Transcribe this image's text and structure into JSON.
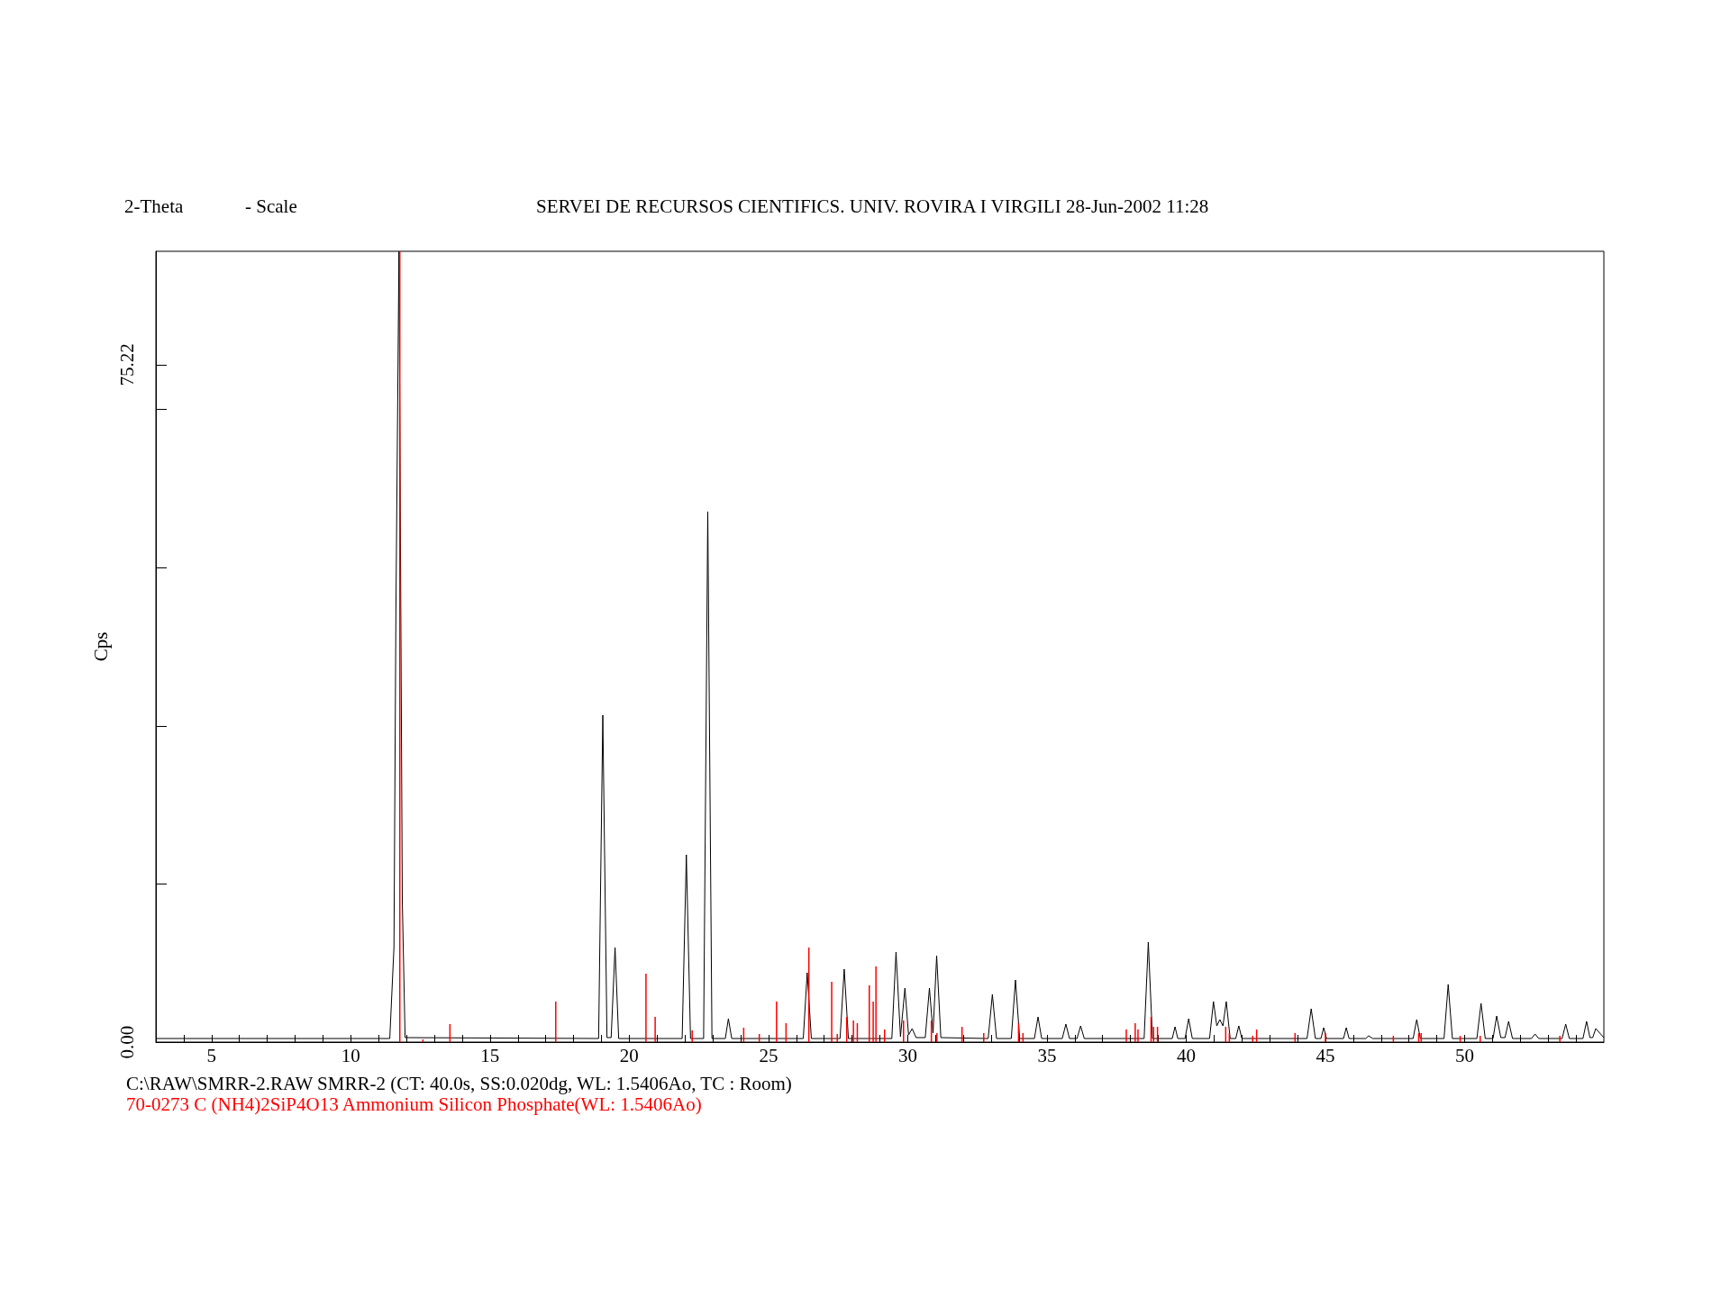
{
  "chart_data": {
    "type": "line",
    "title": "SERVEI DE RECURSOS CIENTIFICS. UNIV. ROVIRA I VIRGILI 28-Jun-2002 11:28",
    "xlabel": "2-Theta",
    "ylabel": "Cps",
    "annotations": [
      "- Scale"
    ],
    "xlim": [
      3,
      55
    ],
    "ylim": [
      0,
      87.8
    ],
    "xticks": [
      {
        "value": 4,
        "label": null
      },
      5,
      {
        "value": 6,
        "label": null
      },
      {
        "value": 7,
        "label": null
      },
      {
        "value": 8,
        "label": null
      },
      {
        "value": 9,
        "label": null
      },
      10,
      {
        "value": 11,
        "label": null
      },
      {
        "value": 12,
        "label": null
      },
      {
        "value": 13,
        "label": null
      },
      {
        "value": 14,
        "label": null
      },
      15,
      {
        "value": 16,
        "label": null
      },
      {
        "value": 17,
        "label": null
      },
      {
        "value": 18,
        "label": null
      },
      {
        "value": 19,
        "label": null
      },
      20,
      {
        "value": 21,
        "label": null
      },
      {
        "value": 22,
        "label": null
      },
      {
        "value": 23,
        "label": null
      },
      {
        "value": 24,
        "label": null
      },
      25,
      {
        "value": 26,
        "label": null
      },
      {
        "value": 27,
        "label": null
      },
      {
        "value": 28,
        "label": null
      },
      {
        "value": 29,
        "label": null
      },
      30,
      {
        "value": 31,
        "label": null
      },
      {
        "value": 32,
        "label": null
      },
      {
        "value": 33,
        "label": null
      },
      {
        "value": 34,
        "label": null
      },
      35,
      {
        "value": 36,
        "label": null
      },
      {
        "value": 37,
        "label": null
      },
      {
        "value": 38,
        "label": null
      },
      {
        "value": 39,
        "label": null
      },
      40,
      {
        "value": 41,
        "label": null
      },
      {
        "value": 42,
        "label": null
      },
      {
        "value": 43,
        "label": null
      },
      {
        "value": 44,
        "label": null
      },
      45,
      {
        "value": 46,
        "label": null
      },
      {
        "value": 47,
        "label": null
      },
      {
        "value": 48,
        "label": null
      },
      {
        "value": 49,
        "label": null
      },
      50,
      {
        "value": 51,
        "label": null
      },
      {
        "value": 52,
        "label": null
      },
      {
        "value": 53,
        "label": null
      },
      {
        "value": 54,
        "label": null
      }
    ],
    "yticks": [
      {
        "value": 0,
        "label": "0.00"
      },
      {
        "value": 17.56,
        "label": null
      },
      {
        "value": 35.12,
        "label": null
      },
      {
        "value": 52.68,
        "label": null
      },
      {
        "value": 70.24,
        "label": null
      },
      {
        "value": 75.22,
        "label": "75.22"
      }
    ],
    "grid": false,
    "marker": "none",
    "legend": "bottom left",
    "series": [
      {
        "name": "C:\\RAW\\SMRR-2.RAW SMRR-2 (CT: 40.0s, SS:0.020dg, WL: 1.5406Ao, TC : Room)",
        "color": "#000000",
        "x": [
          3.0,
          11.4,
          11.55,
          11.62,
          11.73,
          11.85,
          11.95,
          18.9,
          19.05,
          19.2,
          19.35,
          19.49,
          19.62,
          21.9,
          22.05,
          22.2,
          22.67,
          22.82,
          22.97,
          23.45,
          23.56,
          23.68,
          26.25,
          26.39,
          26.54,
          27.57,
          27.72,
          27.87,
          29.43,
          29.58,
          29.74,
          29.9,
          30.03,
          30.16,
          30.3,
          30.63,
          30.78,
          30.91,
          31.04,
          31.19,
          32.89,
          33.04,
          33.19,
          33.72,
          33.87,
          34.02,
          34.55,
          34.68,
          34.81,
          35.55,
          35.68,
          35.81,
          36.08,
          36.21,
          36.34,
          38.49,
          38.64,
          38.79,
          39.5,
          39.6,
          39.7,
          39.96,
          40.09,
          40.22,
          40.84,
          40.98,
          41.1,
          41.21,
          41.32,
          41.44,
          41.58,
          41.78,
          41.89,
          42.0,
          44.34,
          44.49,
          44.64,
          44.84,
          44.94,
          45.04,
          45.65,
          45.75,
          45.85,
          46.45,
          46.55,
          46.7,
          48.15,
          48.28,
          48.41,
          49.26,
          49.41,
          49.56,
          50.44,
          50.59,
          50.74,
          51.02,
          51.15,
          51.3,
          51.45,
          51.58,
          51.72,
          52.4,
          52.53,
          52.66,
          53.5,
          53.63,
          53.76,
          54.25,
          54.38,
          54.5,
          54.6,
          54.71,
          55.0
        ],
        "values": [
          0.4,
          0.4,
          10.5,
          47.8,
          87.8,
          15.7,
          0.5,
          0.4,
          36.3,
          0.5,
          0.5,
          10.5,
          0.4,
          0.4,
          20.8,
          0.4,
          0.4,
          58.9,
          0.4,
          0.4,
          2.6,
          0.4,
          0.4,
          7.7,
          0.4,
          0.4,
          8.1,
          0.4,
          0.4,
          10.0,
          0.6,
          6.0,
          0.8,
          1.5,
          0.5,
          0.5,
          6.0,
          1.0,
          9.6,
          0.5,
          0.4,
          5.3,
          0.4,
          0.4,
          6.9,
          0.4,
          0.4,
          2.8,
          0.4,
          0.4,
          2.0,
          0.4,
          0.4,
          1.8,
          0.4,
          0.4,
          11.1,
          0.4,
          0.4,
          1.7,
          0.4,
          0.4,
          2.6,
          0.4,
          0.4,
          4.5,
          1.8,
          2.5,
          1.8,
          4.5,
          0.4,
          0.4,
          1.8,
          0.4,
          0.4,
          3.7,
          0.4,
          0.4,
          1.6,
          0.4,
          0.4,
          1.6,
          0.4,
          0.4,
          0.7,
          0.4,
          0.4,
          2.5,
          0.4,
          0.4,
          6.4,
          0.4,
          0.4,
          4.3,
          0.4,
          0.4,
          2.9,
          0.5,
          0.5,
          2.3,
          0.4,
          0.4,
          0.9,
          0.4,
          0.4,
          2.0,
          0.4,
          0.4,
          2.3,
          0.5,
          0.5,
          1.5,
          0.5
        ]
      },
      {
        "name": "70-0273 C (NH4)2SiP4O13 Ammonium Silicon Phosphate(WL: 1.5406Ao)",
        "type": "bar",
        "color": "#ff0000",
        "x": [
          11.76,
          12.59,
          13.56,
          17.36,
          20.6,
          20.93,
          22.26,
          24.11,
          24.67,
          25.29,
          25.63,
          26.45,
          27.27,
          27.47,
          27.81,
          28.05,
          28.19,
          28.62,
          28.76,
          28.86,
          29.17,
          29.85,
          30.85,
          31.05,
          31.95,
          32.73,
          33.98,
          34.14,
          37.85,
          38.17,
          38.27,
          38.74,
          38.83,
          38.97,
          41.42,
          41.55,
          42.39,
          42.53,
          43.91,
          45.0,
          47.44,
          48.35,
          48.44,
          49.84,
          50.56,
          53.42
        ],
        "values": [
          87.8,
          0.3,
          2.0,
          4.5,
          7.6,
          2.8,
          1.3,
          1.6,
          0.9,
          4.5,
          2.1,
          10.5,
          6.7,
          0.9,
          2.8,
          2.4,
          2.1,
          6.3,
          4.5,
          8.4,
          1.4,
          2.4,
          2.4,
          1.0,
          1.7,
          1.0,
          2.1,
          1.0,
          1.4,
          2.1,
          1.4,
          2.8,
          1.7,
          1.7,
          1.7,
          1.0,
          0.7,
          1.4,
          1.0,
          1.0,
          0.7,
          1.0,
          1.0,
          0.7,
          0.7,
          0.7
        ]
      }
    ]
  }
}
